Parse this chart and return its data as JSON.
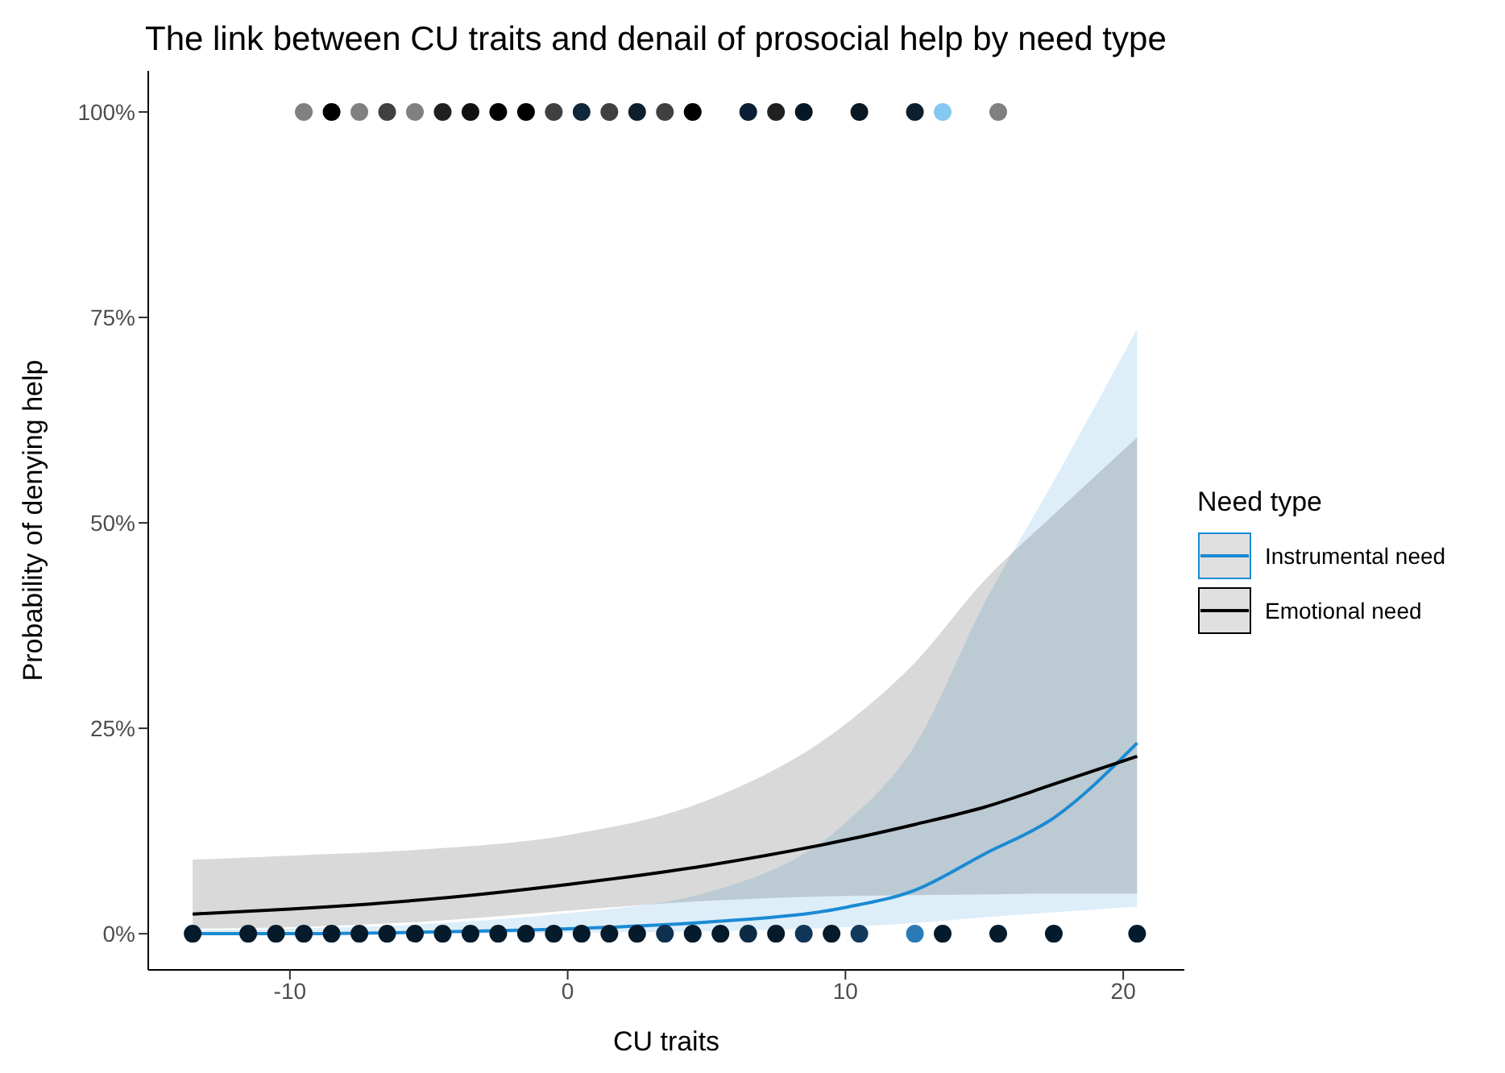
{
  "chart_data": {
    "type": "line",
    "title": "The link between CU traits and denail of prosocial help by need type",
    "xlabel": "CU traits",
    "ylabel": "Probability of denying help",
    "legend_title": "Need type",
    "legend": "right",
    "grid": false,
    "marker": "none",
    "line_style": "solid",
    "xlim": [
      -15.1,
      22.2
    ],
    "xticks": [
      -10,
      0,
      10,
      20
    ],
    "ylim": [
      -4.4,
      105
    ],
    "yticks": [
      {
        "value": 0,
        "label": "0%"
      },
      {
        "value": 25,
        "label": "25%"
      },
      {
        "value": 50,
        "label": "50%"
      },
      {
        "value": 75,
        "label": "75%"
      },
      {
        "value": 100,
        "label": "100%"
      }
    ],
    "series": [
      {
        "name": "Instrumental need",
        "color": "#1a8ad4",
        "x": [
          -13.5,
          -10,
          -5,
          0,
          5,
          10,
          12.5,
          15,
          17.5,
          20.5
        ],
        "values": [
          0,
          0,
          0.2,
          0.6,
          1.4,
          3.2,
          5.3,
          9.7,
          14.1,
          23.2
        ],
        "lower": [
          0,
          0,
          0,
          0.1,
          0.3,
          0.8,
          1.3,
          2.0,
          2.6,
          3.3
        ],
        "upper": [
          0.4,
          0.6,
          1.2,
          2.5,
          5.0,
          13.5,
          22.9,
          40.2,
          55.1,
          73.6
        ]
      },
      {
        "name": "Emotional need",
        "color": "#000000",
        "x": [
          -13.5,
          -10,
          -5,
          0,
          5,
          10,
          12.5,
          15,
          17.5,
          20.5
        ],
        "values": [
          2.4,
          3.0,
          4.2,
          6.0,
          8.3,
          11.4,
          13.3,
          15.4,
          18.2,
          21.6
        ],
        "lower": [
          0.6,
          0.8,
          1.5,
          2.8,
          4.0,
          4.6,
          4.7,
          4.8,
          4.9,
          4.9
        ],
        "upper": [
          9.0,
          9.5,
          10.3,
          12.0,
          16.2,
          25.5,
          33.0,
          43.0,
          51.0,
          60.4
        ]
      },
      {
        "type": "scatter",
        "marker": "circle",
        "color": "#000000",
        "x": [
          -9.5,
          -8.5,
          -7.5,
          -6.5,
          -5.5,
          -4.5,
          -3.5,
          -2.5,
          -1.5,
          -0.5,
          0.5,
          1.5,
          2.5,
          3.5,
          4.5,
          6.5,
          7.5,
          8.5,
          10.5,
          12.5,
          13.5,
          15.5
        ],
        "values": [
          100,
          100,
          100,
          100,
          100,
          100,
          100,
          100,
          100,
          100,
          100,
          100,
          100,
          100,
          100,
          100,
          100,
          100,
          100,
          100,
          100,
          100
        ],
        "colors": [
          "#808080",
          "#000000",
          "#808080",
          "#404040",
          "#808080",
          "#202020",
          "#101010",
          "#000000",
          "#000000",
          "#404040",
          "#10263a",
          "#404040",
          "#0d1f2d",
          "#404040",
          "#000000",
          "#0a1f33",
          "#202020",
          "#051625",
          "#081824",
          "#0d1f2d",
          "#87c8f0",
          "#808080"
        ]
      },
      {
        "type": "scatter",
        "marker": "circle",
        "color": "#051a2a",
        "x": [
          -13.5,
          -11.5,
          -10.5,
          -9.5,
          -8.5,
          -7.5,
          -6.5,
          -5.5,
          -4.5,
          -3.5,
          -2.5,
          -1.5,
          -0.5,
          0.5,
          1.5,
          2.5,
          3.5,
          4.5,
          5.5,
          6.5,
          7.5,
          8.5,
          9.5,
          10.5,
          12.5,
          13.5,
          15.5,
          17.5,
          20.5
        ],
        "values": [
          0,
          0,
          0,
          0,
          0,
          0,
          0,
          0,
          0,
          0,
          0,
          0,
          0,
          0,
          0,
          0,
          0,
          0,
          0,
          0,
          0,
          0,
          0,
          0,
          0,
          0,
          0,
          0,
          0
        ],
        "colors": [
          "#051a2a",
          "#051a2a",
          "#051a2a",
          "#051a2a",
          "#051a2a",
          "#051a2a",
          "#051a2a",
          "#051a2a",
          "#051a2a",
          "#051a2a",
          "#051a2a",
          "#051a2a",
          "#051a2a",
          "#051a2a",
          "#051a2a",
          "#051a2a",
          "#0d3050",
          "#051a2a",
          "#051a2a",
          "#0d2a45",
          "#051a2a",
          "#0f3558",
          "#051a2a",
          "#123a5c",
          "#2a7ab8",
          "#051a2a",
          "#051a2a",
          "#051a2a",
          "#051a2a"
        ]
      }
    ]
  }
}
